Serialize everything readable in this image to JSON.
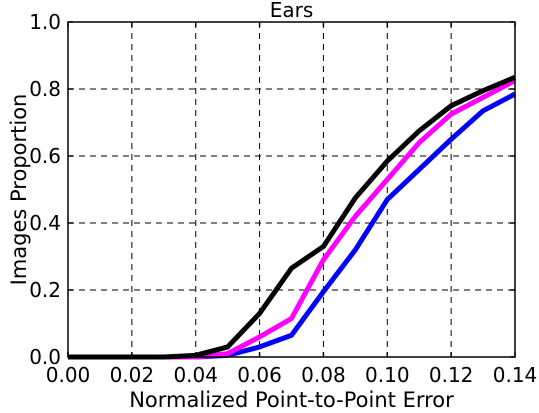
{
  "chart_data": {
    "type": "line",
    "title": "Ears",
    "xlabel": "Normalized Point-to-Point Error",
    "ylabel": "Images Proportion",
    "xlim": [
      0.0,
      0.14
    ],
    "ylim": [
      0.0,
      1.0
    ],
    "grid": true,
    "x_ticks": [
      "0.00",
      "0.02",
      "0.04",
      "0.06",
      "0.08",
      "0.10",
      "0.12",
      "0.14"
    ],
    "y_ticks": [
      "0.0",
      "0.2",
      "0.4",
      "0.6",
      "0.8",
      "1.0"
    ],
    "x": [
      0.0,
      0.01,
      0.02,
      0.03,
      0.04,
      0.05,
      0.06,
      0.07,
      0.08,
      0.09,
      0.1,
      0.11,
      0.12,
      0.13,
      0.14
    ],
    "series": [
      {
        "color": "#000000",
        "values": [
          0.0,
          0.0,
          0.0,
          0.0,
          0.005,
          0.03,
          0.13,
          0.265,
          0.33,
          0.475,
          0.585,
          0.675,
          0.75,
          0.795,
          0.835
        ]
      },
      {
        "color": "#ff00ff",
        "values": [
          0.0,
          0.0,
          0.0,
          0.0,
          0.0,
          0.01,
          0.06,
          0.115,
          0.29,
          0.42,
          0.53,
          0.64,
          0.725,
          0.775,
          0.825
        ]
      },
      {
        "color": "#0000ff",
        "values": [
          0.0,
          0.0,
          0.0,
          0.0,
          0.0,
          0.005,
          0.03,
          0.065,
          0.195,
          0.32,
          0.47,
          0.56,
          0.65,
          0.735,
          0.785
        ]
      }
    ]
  }
}
